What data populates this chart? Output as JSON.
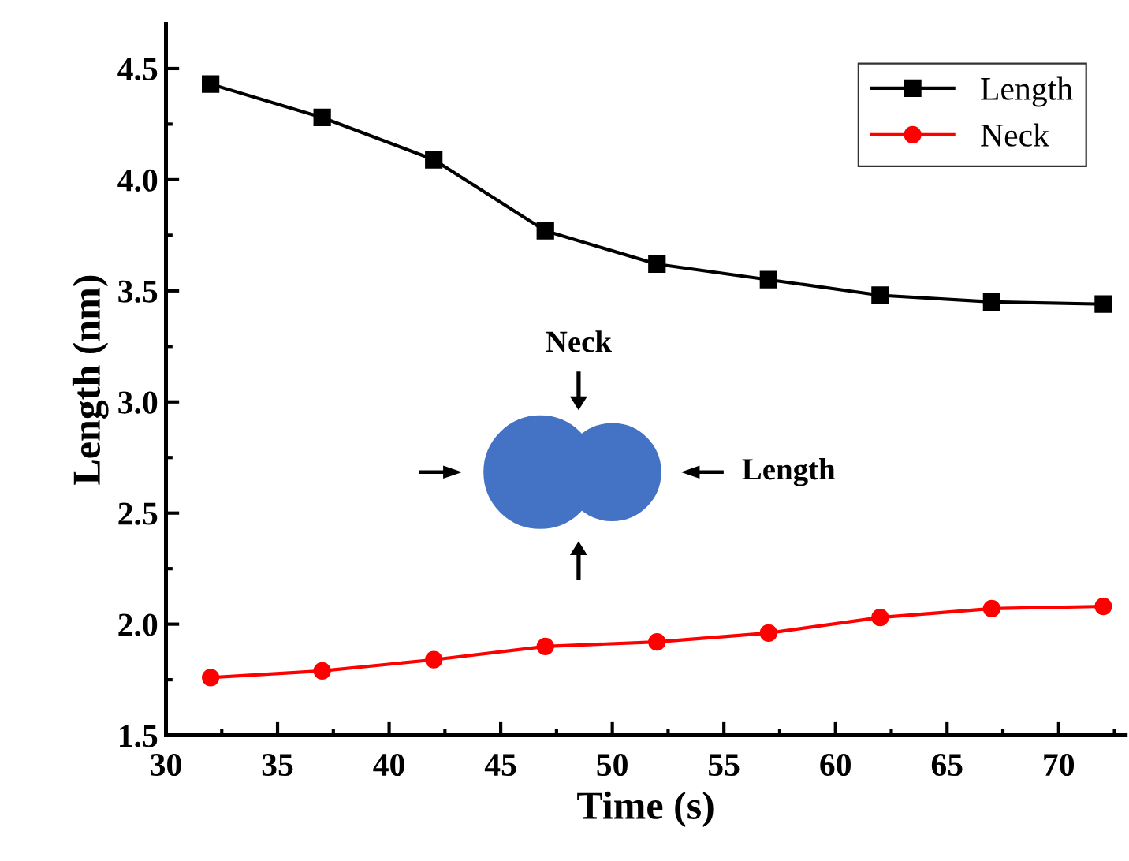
{
  "chart_data": {
    "type": "line",
    "xlabel": "Time (s)",
    "ylabel": "Length (nm)",
    "x": [
      32,
      37,
      42,
      47,
      52,
      57,
      62,
      67,
      72
    ],
    "series": [
      {
        "name": "Length",
        "color": "#000000",
        "marker": "square",
        "values": [
          4.43,
          4.28,
          4.09,
          3.77,
          3.62,
          3.55,
          3.48,
          3.45,
          3.44
        ]
      },
      {
        "name": "Neck",
        "color": "#ff0000",
        "marker": "circle",
        "values": [
          1.76,
          1.79,
          1.84,
          1.9,
          1.92,
          1.96,
          2.03,
          2.07,
          2.08
        ]
      }
    ],
    "xlim": [
      30,
      73
    ],
    "ylim": [
      1.5,
      4.7
    ],
    "xticks": [
      30,
      35,
      40,
      45,
      50,
      55,
      60,
      65,
      70
    ],
    "yticks": [
      1.5,
      {
        "value": 2,
        "label": "2.0"
      },
      2.5,
      {
        "value": 3,
        "label": "3.0"
      },
      3.5,
      {
        "value": 4,
        "label": "4.0"
      },
      4.5
    ],
    "annotations": [
      "Neck",
      "Length"
    ],
    "legend": "top right",
    "grid": false,
    "line_style": "solid"
  }
}
